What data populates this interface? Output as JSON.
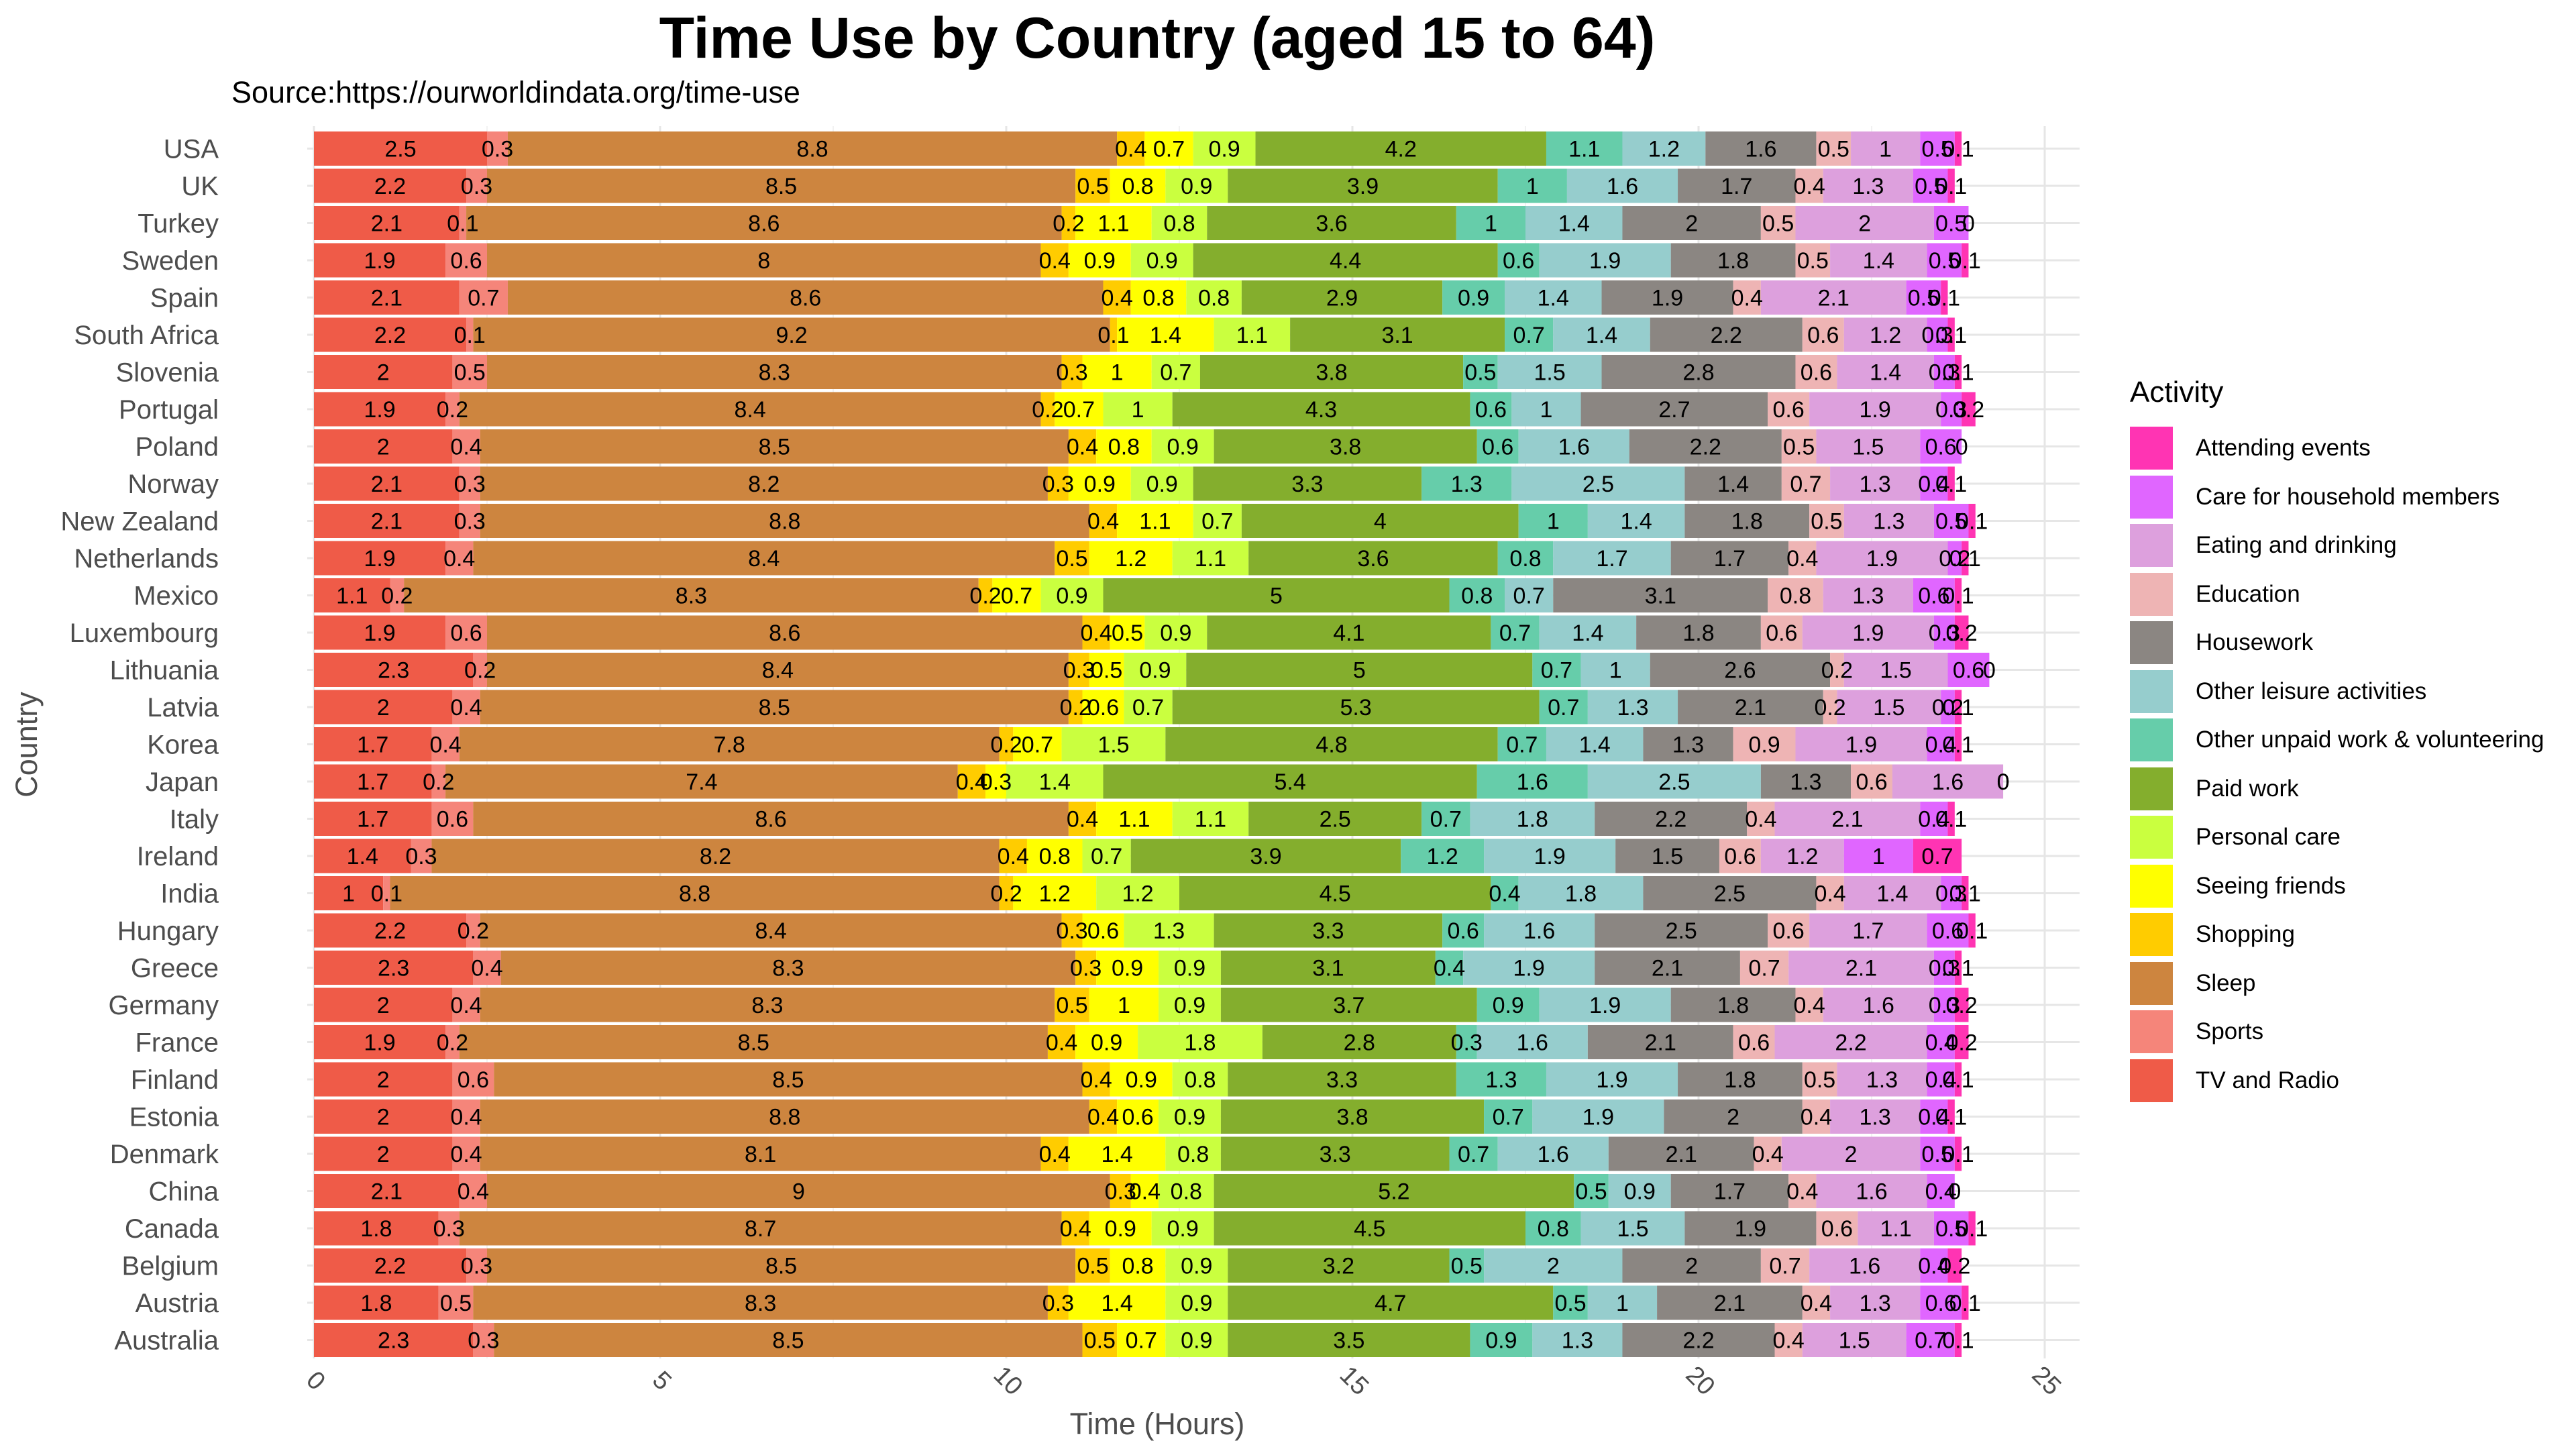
{
  "chart_data": {
    "type": "bar",
    "orientation": "horizontal",
    "stacked": true,
    "title": "Time Use by Country (aged 15 to 64)",
    "subtitle": "Source:https://ourworldindata.org/time-use",
    "xlabel": "Time (Hours)",
    "ylabel": "Country",
    "xlim": [
      0,
      25.5
    ],
    "xticks": [
      0,
      5,
      10,
      15,
      20,
      25
    ],
    "grid": true,
    "legend_title": "Activity",
    "legend_position": "right",
    "activities": [
      "TV and Radio",
      "Sports",
      "Sleep",
      "Shopping",
      "Seeing friends",
      "Personal care",
      "Paid work",
      "Other unpaid work & volunteering",
      "Other leisure activities",
      "Housework",
      "Education",
      "Eating and drinking",
      "Care for household members",
      "Attending events"
    ],
    "legend_order": [
      "Attending events",
      "Care for household members",
      "Eating and drinking",
      "Education",
      "Housework",
      "Other leisure activities",
      "Other unpaid work & volunteering",
      "Paid work",
      "Personal care",
      "Seeing friends",
      "Shopping",
      "Sleep",
      "Sports",
      "TV and Radio"
    ],
    "colors": {
      "TV and Radio": "#ef5b48",
      "Sports": "#f5857a",
      "Sleep": "#cd853f",
      "Shopping": "#ffcc00",
      "Seeing friends": "#ffff00",
      "Personal care": "#caff3f",
      "Paid work": "#84ae2d",
      "Other unpaid work & volunteering": "#66cdaa",
      "Other leisure activities": "#96cdcd",
      "Housework": "#8b8682",
      "Education": "#eeb4b4",
      "Eating and drinking": "#dda0dd",
      "Care for household members": "#e066ff",
      "Attending events": "#ff34b3"
    },
    "countries": [
      "USA",
      "UK",
      "Turkey",
      "Sweden",
      "Spain",
      "South Africa",
      "Slovenia",
      "Portugal",
      "Poland",
      "Norway",
      "New Zealand",
      "Netherlands",
      "Mexico",
      "Luxembourg",
      "Lithuania",
      "Latvia",
      "Korea",
      "Japan",
      "Italy",
      "Ireland",
      "India",
      "Hungary",
      "Greece",
      "Germany",
      "France",
      "Finland",
      "Estonia",
      "Denmark",
      "China",
      "Canada",
      "Belgium",
      "Austria",
      "Australia"
    ],
    "values": [
      [
        2.5,
        0.3,
        8.8,
        0.4,
        0.7,
        0.9,
        4.2,
        1.1,
        1.2,
        1.6,
        0.5,
        1,
        0.5,
        0.1
      ],
      [
        2.2,
        0.3,
        8.5,
        0.5,
        0.8,
        0.9,
        3.9,
        1,
        1.6,
        1.7,
        0.4,
        1.3,
        0.5,
        0.1
      ],
      [
        2.1,
        0.1,
        8.6,
        0.2,
        1.1,
        0.8,
        3.6,
        1,
        1.4,
        2,
        0.5,
        2,
        0.5,
        0
      ],
      [
        1.9,
        0.6,
        8,
        0.4,
        0.9,
        0.9,
        4.4,
        0.6,
        1.9,
        1.8,
        0.5,
        1.4,
        0.5,
        0.1
      ],
      [
        2.1,
        0.7,
        8.6,
        0.4,
        0.8,
        0.8,
        2.9,
        0.9,
        1.4,
        1.9,
        0.4,
        2.1,
        0.5,
        0.1
      ],
      [
        2.2,
        0.1,
        9.2,
        0.1,
        1.4,
        1.1,
        3.1,
        0.7,
        1.4,
        2.2,
        0.6,
        1.2,
        0.3,
        0.1
      ],
      [
        2,
        0.5,
        8.3,
        0.3,
        1,
        0.7,
        3.8,
        0.5,
        1.5,
        2.8,
        0.6,
        1.4,
        0.3,
        0.1
      ],
      [
        1.9,
        0.2,
        8.4,
        0.2,
        0.7,
        1,
        4.3,
        0.6,
        1,
        2.7,
        0.6,
        1.9,
        0.3,
        0.2
      ],
      [
        2,
        0.4,
        8.5,
        0.4,
        0.8,
        0.9,
        3.8,
        0.6,
        1.6,
        2.2,
        0.5,
        1.5,
        0.6,
        0
      ],
      [
        2.1,
        0.3,
        8.2,
        0.3,
        0.9,
        0.9,
        3.3,
        1.3,
        2.5,
        1.4,
        0.7,
        1.3,
        0.4,
        0.1
      ],
      [
        2.1,
        0.3,
        8.8,
        0.4,
        1.1,
        0.7,
        4,
        1,
        1.4,
        1.8,
        0.5,
        1.3,
        0.5,
        0.1
      ],
      [
        1.9,
        0.4,
        8.4,
        0.5,
        1.2,
        1.1,
        3.6,
        0.8,
        1.7,
        1.7,
        0.4,
        1.9,
        0.2,
        0.1
      ],
      [
        1.1,
        0.2,
        8.3,
        0.2,
        0.7,
        0.9,
        5,
        0.8,
        0.7,
        3.1,
        0.8,
        1.3,
        0.6,
        0.1
      ],
      [
        1.9,
        0.6,
        8.6,
        0.4,
        0.5,
        0.9,
        4.1,
        0.7,
        1.4,
        1.8,
        0.6,
        1.9,
        0.3,
        0.2
      ],
      [
        2.3,
        0.2,
        8.4,
        0.3,
        0.5,
        0.9,
        5,
        0.7,
        1,
        2.6,
        0.2,
        1.5,
        0.6,
        0
      ],
      [
        2,
        0.4,
        8.5,
        0.2,
        0.6,
        0.7,
        5.3,
        0.7,
        1.3,
        2.1,
        0.2,
        1.5,
        0.2,
        0.1
      ],
      [
        1.7,
        0.4,
        7.8,
        0.2,
        0.7,
        1.5,
        4.8,
        0.7,
        1.4,
        1.3,
        0.9,
        1.9,
        0.4,
        0.1
      ],
      [
        1.7,
        0.2,
        7.4,
        0.4,
        0.3,
        1.4,
        5.4,
        1.6,
        2.5,
        1.3,
        0.6,
        1.6,
        0,
        0
      ],
      [
        1.7,
        0.6,
        8.6,
        0.4,
        1.1,
        1.1,
        2.5,
        0.7,
        1.8,
        2.2,
        0.4,
        2.1,
        0.4,
        0.1
      ],
      [
        1.4,
        0.3,
        8.2,
        0.4,
        0.8,
        0.7,
        3.9,
        1.2,
        1.9,
        1.5,
        0.6,
        1.2,
        1,
        0.7
      ],
      [
        1,
        0.1,
        8.8,
        0.2,
        1.2,
        1.2,
        4.5,
        0.4,
        1.8,
        2.5,
        0.4,
        1.4,
        0.3,
        0.1
      ],
      [
        2.2,
        0.2,
        8.4,
        0.3,
        0.6,
        1.3,
        3.3,
        0.6,
        1.6,
        2.5,
        0.6,
        1.7,
        0.6,
        0.1
      ],
      [
        2.3,
        0.4,
        8.3,
        0.3,
        0.9,
        0.9,
        3.1,
        0.4,
        1.9,
        2.1,
        0.7,
        2.1,
        0.3,
        0.1
      ],
      [
        2,
        0.4,
        8.3,
        0.5,
        1,
        0.9,
        3.7,
        0.9,
        1.9,
        1.8,
        0.4,
        1.6,
        0.3,
        0.2
      ],
      [
        1.9,
        0.2,
        8.5,
        0.4,
        0.9,
        1.8,
        2.8,
        0.3,
        1.6,
        2.1,
        0.6,
        2.2,
        0.4,
        0.2
      ],
      [
        2,
        0.6,
        8.5,
        0.4,
        0.9,
        0.8,
        3.3,
        1.3,
        1.9,
        1.8,
        0.5,
        1.3,
        0.4,
        0.1
      ],
      [
        2,
        0.4,
        8.8,
        0.4,
        0.6,
        0.9,
        3.8,
        0.7,
        1.9,
        2,
        0.4,
        1.3,
        0.4,
        0.1
      ],
      [
        2,
        0.4,
        8.1,
        0.4,
        1.4,
        0.8,
        3.3,
        0.7,
        1.6,
        2.1,
        0.4,
        2,
        0.5,
        0.1
      ],
      [
        2.1,
        0.4,
        9,
        0.3,
        0.4,
        0.8,
        5.2,
        0.5,
        0.9,
        1.7,
        0.4,
        1.6,
        0.4,
        0
      ],
      [
        1.8,
        0.3,
        8.7,
        0.4,
        0.9,
        0.9,
        4.5,
        0.8,
        1.5,
        1.9,
        0.6,
        1.1,
        0.5,
        0.1
      ],
      [
        2.2,
        0.3,
        8.5,
        0.5,
        0.8,
        0.9,
        3.2,
        0.5,
        2,
        2,
        0.7,
        1.6,
        0.4,
        0.2
      ],
      [
        1.8,
        0.5,
        8.3,
        0.3,
        1.4,
        0.9,
        4.7,
        0.5,
        1,
        2.1,
        0.4,
        1.3,
        0.6,
        0.1
      ],
      [
        2.3,
        0.3,
        8.5,
        0.5,
        0.7,
        0.9,
        3.5,
        0.9,
        1.3,
        2.2,
        0.4,
        1.5,
        0.7,
        0.1
      ]
    ]
  }
}
